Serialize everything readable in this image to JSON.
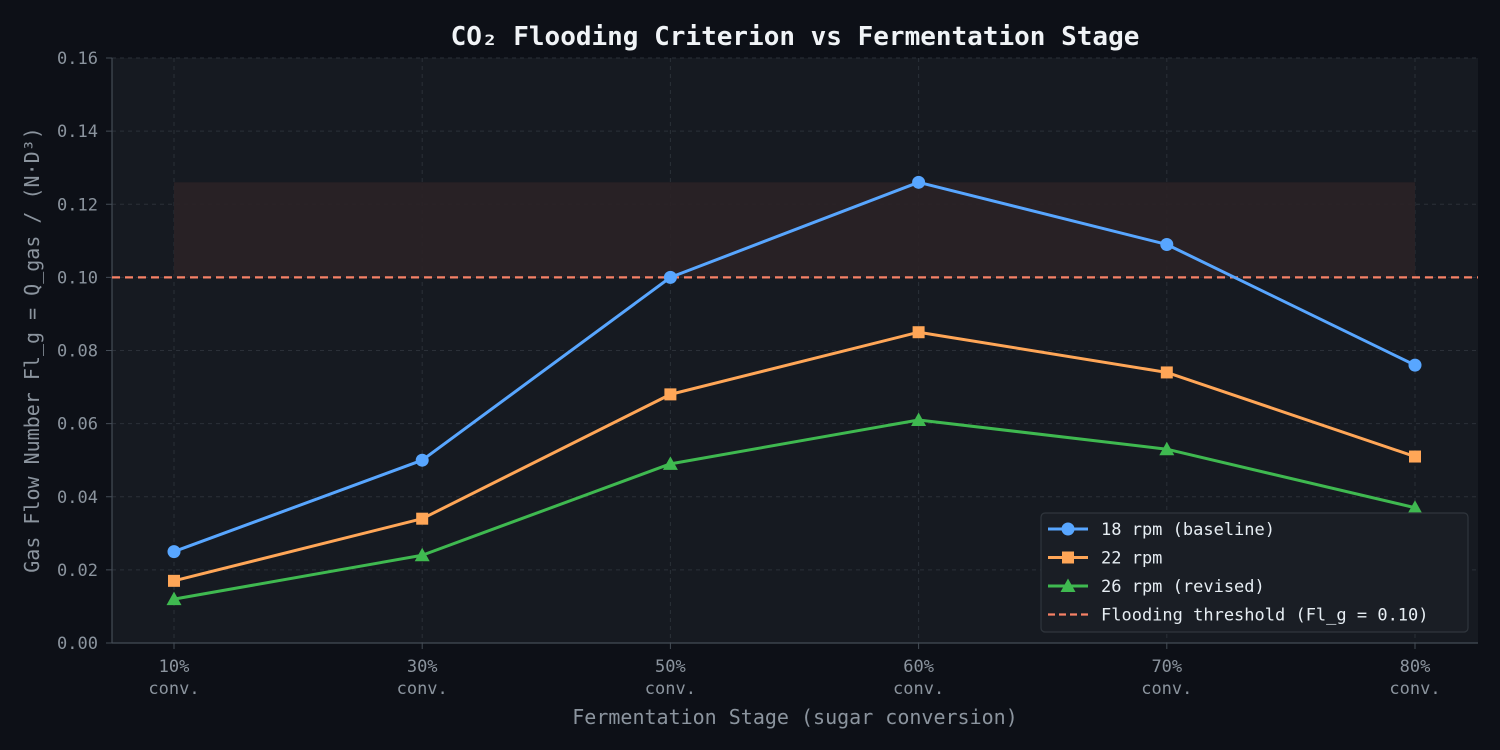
{
  "chart_data": {
    "type": "line",
    "title": "CO₂ Flooding Criterion vs Fermentation Stage",
    "xlabel": "Fermentation Stage (sugar conversion)",
    "ylabel": "Gas Flow Number Fl_g = Q_gas / (N·D³)",
    "categories": [
      [
        "10%",
        "conv."
      ],
      [
        "30%",
        "conv."
      ],
      [
        "50%",
        "conv."
      ],
      [
        "60%",
        "conv."
      ],
      [
        "70%",
        "conv."
      ],
      [
        "80%",
        "conv."
      ]
    ],
    "ylim": [
      0,
      0.16
    ],
    "yticks": [
      "0.00",
      "0.02",
      "0.04",
      "0.06",
      "0.08",
      "0.10",
      "0.12",
      "0.14",
      "0.16"
    ],
    "grid": true,
    "legend_position": "bottom-right",
    "series": [
      {
        "name": "18 rpm (baseline)",
        "values": [
          0.025,
          0.05,
          0.1,
          0.126,
          0.109,
          0.076
        ],
        "color": "#58a6ff",
        "marker": "circle"
      },
      {
        "name": "22 rpm",
        "values": [
          0.017,
          0.034,
          0.068,
          0.085,
          0.074,
          0.051
        ],
        "color": "#ffa657",
        "marker": "square"
      },
      {
        "name": "26 rpm (revised)",
        "values": [
          0.012,
          0.024,
          0.049,
          0.061,
          0.053,
          0.037
        ],
        "color": "#3fb950",
        "marker": "triangle"
      }
    ],
    "threshold": {
      "name": "Flooding threshold (Fl_g = 0.10)",
      "value": 0.1,
      "color": "#f78166"
    },
    "flood_zone": {
      "upper": 0.126,
      "from_index": 0,
      "to_index": 5,
      "color": "#2a2226"
    }
  }
}
